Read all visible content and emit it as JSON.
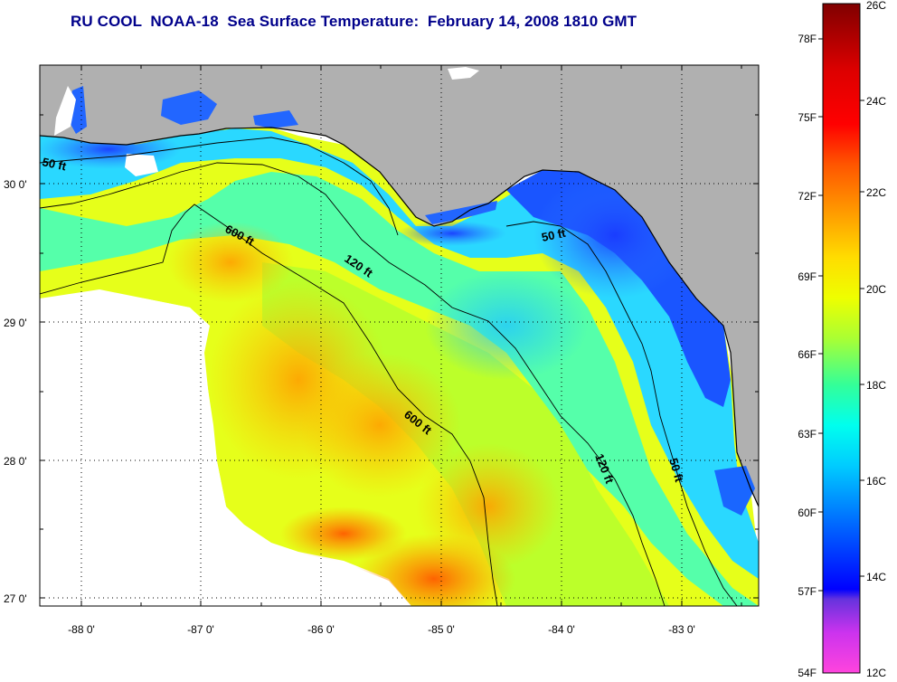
{
  "title": "RU COOL  NOAA-18  Sea Surface Temperature:  February 14, 2008 1810 GMT",
  "map": {
    "lat_labels": [
      "30 0'",
      "29 0'",
      "28 0'",
      "27 0'"
    ],
    "lon_labels": [
      "-88 0'",
      "-87 0'",
      "-86 0'",
      "-85 0'",
      "-84 0'",
      "-83 0'"
    ],
    "contour_labels": [
      "50 ft",
      "600 ft",
      "120 ft",
      "50 ft",
      "600 ft",
      "120 ft",
      "50 ft"
    ],
    "colors": {
      "land": "#b0b0b0",
      "cloud": "#ffffff",
      "frame": "#000000"
    }
  },
  "colorbar": {
    "celsius_labels": [
      "26C",
      "24C",
      "22C",
      "20C",
      "18C",
      "16C",
      "14C",
      "12C"
    ],
    "fahrenheit_labels": [
      "78F",
      "75F",
      "72F",
      "69F",
      "66F",
      "63F",
      "60F",
      "57F",
      "54F"
    ],
    "stops": [
      "#ff44dd",
      "#9933cc",
      "#0000ff",
      "#0066ff",
      "#00ccff",
      "#00ffcc",
      "#33ff66",
      "#ccff00",
      "#ffff00",
      "#ffcc00",
      "#ff9900",
      "#ff4400",
      "#ff0000",
      "#cc0000",
      "#880000"
    ]
  }
}
